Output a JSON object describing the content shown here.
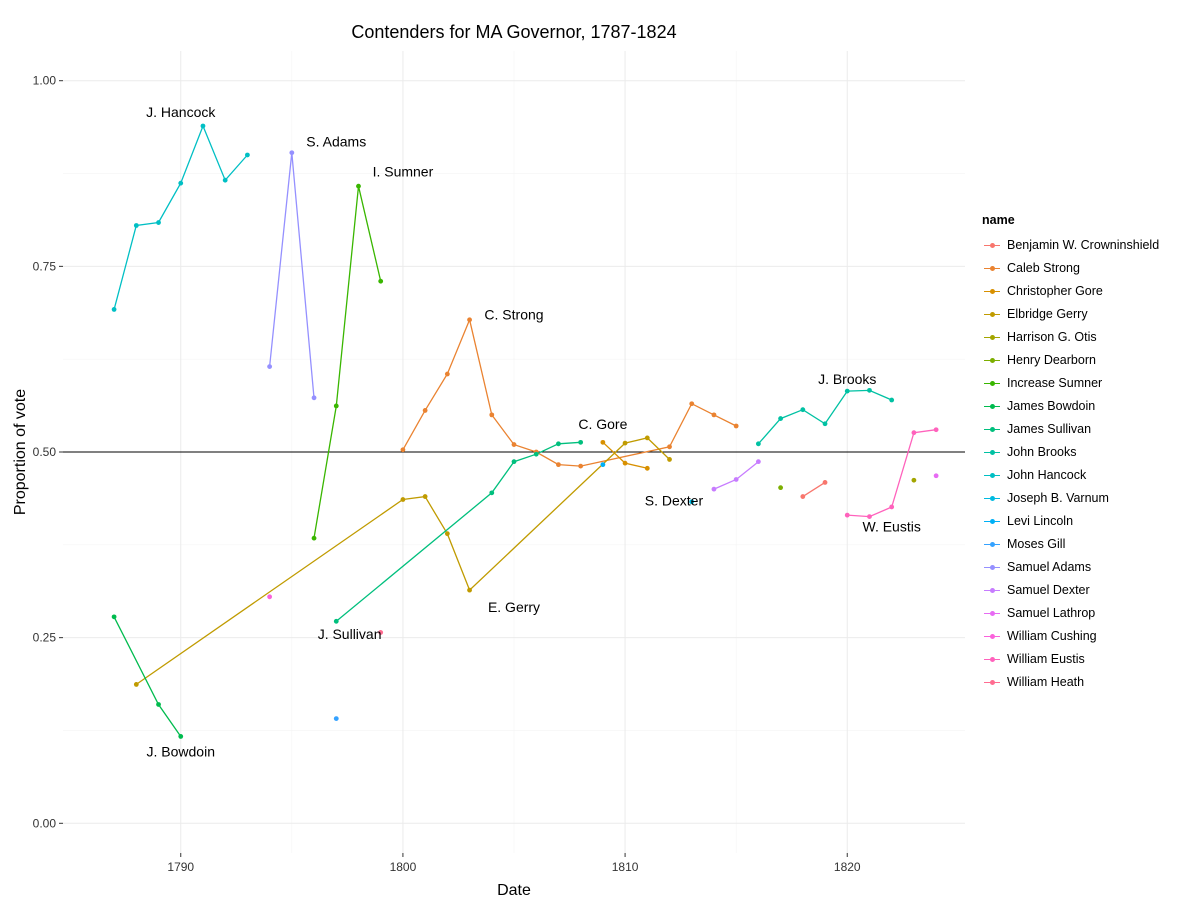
{
  "chart_data": {
    "type": "line",
    "title": "Contenders for MA Governor, 1787-1824",
    "xlabel": "Date",
    "ylabel": "Proportion of vote",
    "xlim": [
      1784.7,
      1825.3
    ],
    "ylim": [
      -0.04,
      1.04
    ],
    "xticks": [
      1790,
      1800,
      1810,
      1820
    ],
    "xtick_labels": [
      "1790",
      "1800",
      "1810",
      "1820"
    ],
    "yticks": [
      0,
      0.25,
      0.5,
      0.75,
      1.0
    ],
    "ytick_labels": [
      "0.00",
      "0.25",
      "0.50",
      "0.75",
      "1.00"
    ],
    "reference_line": 0.5,
    "grid": true,
    "legend_title": "name",
    "legend_position": "right",
    "series": [
      {
        "name": "Benjamin W. Crowninshield",
        "color": "#F8766D",
        "points": [
          [
            1818,
            0.44
          ],
          [
            1819,
            0.459
          ]
        ]
      },
      {
        "name": "Caleb Strong",
        "color": "#EA8331",
        "points": [
          [
            1800,
            0.503
          ],
          [
            1801,
            0.556
          ],
          [
            1802,
            0.605
          ],
          [
            1803,
            0.678
          ],
          [
            1804,
            0.55
          ],
          [
            1805,
            0.51
          ],
          [
            1806,
            0.5
          ],
          [
            1807,
            0.483
          ],
          [
            1808,
            0.481
          ],
          [
            1812,
            0.507
          ],
          [
            1813,
            0.565
          ],
          [
            1814,
            0.55
          ],
          [
            1815,
            0.535
          ]
        ]
      },
      {
        "name": "Christopher Gore",
        "color": "#D89000",
        "points": [
          [
            1809,
            0.513
          ],
          [
            1810,
            0.485
          ],
          [
            1811,
            0.478
          ]
        ]
      },
      {
        "name": "Elbridge Gerry",
        "color": "#C09B00",
        "points": [
          [
            1788,
            0.187
          ],
          [
            1800,
            0.436
          ],
          [
            1801,
            0.44
          ],
          [
            1802,
            0.39
          ],
          [
            1803,
            0.314
          ],
          [
            1810,
            0.512
          ],
          [
            1811,
            0.519
          ],
          [
            1812,
            0.49
          ]
        ]
      },
      {
        "name": "Harrison G. Otis",
        "color": "#A3A500",
        "points": [
          [
            1823,
            0.462
          ]
        ]
      },
      {
        "name": "Henry Dearborn",
        "color": "#7CAE00",
        "points": [
          [
            1817,
            0.452
          ]
        ]
      },
      {
        "name": "Increase Sumner",
        "color": "#39B600",
        "points": [
          [
            1796,
            0.384
          ],
          [
            1797,
            0.562
          ],
          [
            1798,
            0.858
          ],
          [
            1799,
            0.73
          ]
        ]
      },
      {
        "name": "James Bowdoin",
        "color": "#00BB4E",
        "points": [
          [
            1787,
            0.278
          ],
          [
            1789,
            0.16
          ],
          [
            1790,
            0.117
          ]
        ]
      },
      {
        "name": "James Sullivan",
        "color": "#00BF7D",
        "points": [
          [
            1797,
            0.272
          ],
          [
            1804,
            0.445
          ],
          [
            1805,
            0.487
          ],
          [
            1806,
            0.497
          ],
          [
            1807,
            0.511
          ],
          [
            1808,
            0.513
          ]
        ]
      },
      {
        "name": "John Brooks",
        "color": "#00C1A3",
        "points": [
          [
            1816,
            0.511
          ],
          [
            1817,
            0.545
          ],
          [
            1818,
            0.557
          ],
          [
            1819,
            0.538
          ],
          [
            1820,
            0.582
          ],
          [
            1821,
            0.583
          ],
          [
            1822,
            0.57
          ]
        ]
      },
      {
        "name": "John Hancock",
        "color": "#00BFC4",
        "points": [
          [
            1787,
            0.692
          ],
          [
            1788,
            0.805
          ],
          [
            1789,
            0.809
          ],
          [
            1790,
            0.862
          ],
          [
            1791,
            0.939
          ],
          [
            1792,
            0.866
          ],
          [
            1793,
            0.9
          ]
        ]
      },
      {
        "name": "Joseph B. Varnum",
        "color": "#00BAE0",
        "points": [
          [
            1813,
            0.433
          ]
        ]
      },
      {
        "name": "Levi Lincoln",
        "color": "#00B0F6",
        "points": [
          [
            1809,
            0.483
          ]
        ]
      },
      {
        "name": "Moses Gill",
        "color": "#35A2FF",
        "points": [
          [
            1797,
            0.141
          ]
        ]
      },
      {
        "name": "Samuel Adams",
        "color": "#9590FF",
        "points": [
          [
            1794,
            0.615
          ],
          [
            1795,
            0.903
          ],
          [
            1796,
            0.573
          ]
        ]
      },
      {
        "name": "Samuel Dexter",
        "color": "#C77CFF",
        "points": [
          [
            1814,
            0.45
          ],
          [
            1815,
            0.463
          ],
          [
            1816,
            0.487
          ]
        ]
      },
      {
        "name": "Samuel Lathrop",
        "color": "#E76BF3",
        "points": [
          [
            1824,
            0.468
          ]
        ]
      },
      {
        "name": "William Cushing",
        "color": "#FA62DB",
        "points": [
          [
            1794,
            0.305
          ]
        ]
      },
      {
        "name": "William Eustis",
        "color": "#FF62BC",
        "points": [
          [
            1820,
            0.415
          ],
          [
            1821,
            0.413
          ],
          [
            1822,
            0.426
          ],
          [
            1823,
            0.526
          ],
          [
            1824,
            0.53
          ]
        ]
      },
      {
        "name": "William Heath",
        "color": "#FF6C91",
        "points": [
          [
            1799,
            0.257
          ]
        ]
      }
    ],
    "annotations": [
      {
        "text": "J. Hancock",
        "x": 1790.0,
        "y": 0.958
      },
      {
        "text": "S. Adams",
        "x": 1797.0,
        "y": 0.918
      },
      {
        "text": "I. Sumner",
        "x": 1800.0,
        "y": 0.878
      },
      {
        "text": "C. Strong",
        "x": 1805.0,
        "y": 0.685
      },
      {
        "text": "C. Gore",
        "x": 1809.0,
        "y": 0.538
      },
      {
        "text": "J. Brooks",
        "x": 1820.0,
        "y": 0.598
      },
      {
        "text": "S. Dexter",
        "x": 1812.2,
        "y": 0.435
      },
      {
        "text": "W. Eustis",
        "x": 1822.0,
        "y": 0.4
      },
      {
        "text": "E. Gerry",
        "x": 1805.0,
        "y": 0.291
      },
      {
        "text": "J. Sullivan",
        "x": 1797.6,
        "y": 0.255
      },
      {
        "text": "J. Bowdoin",
        "x": 1790.0,
        "y": 0.097
      }
    ]
  }
}
